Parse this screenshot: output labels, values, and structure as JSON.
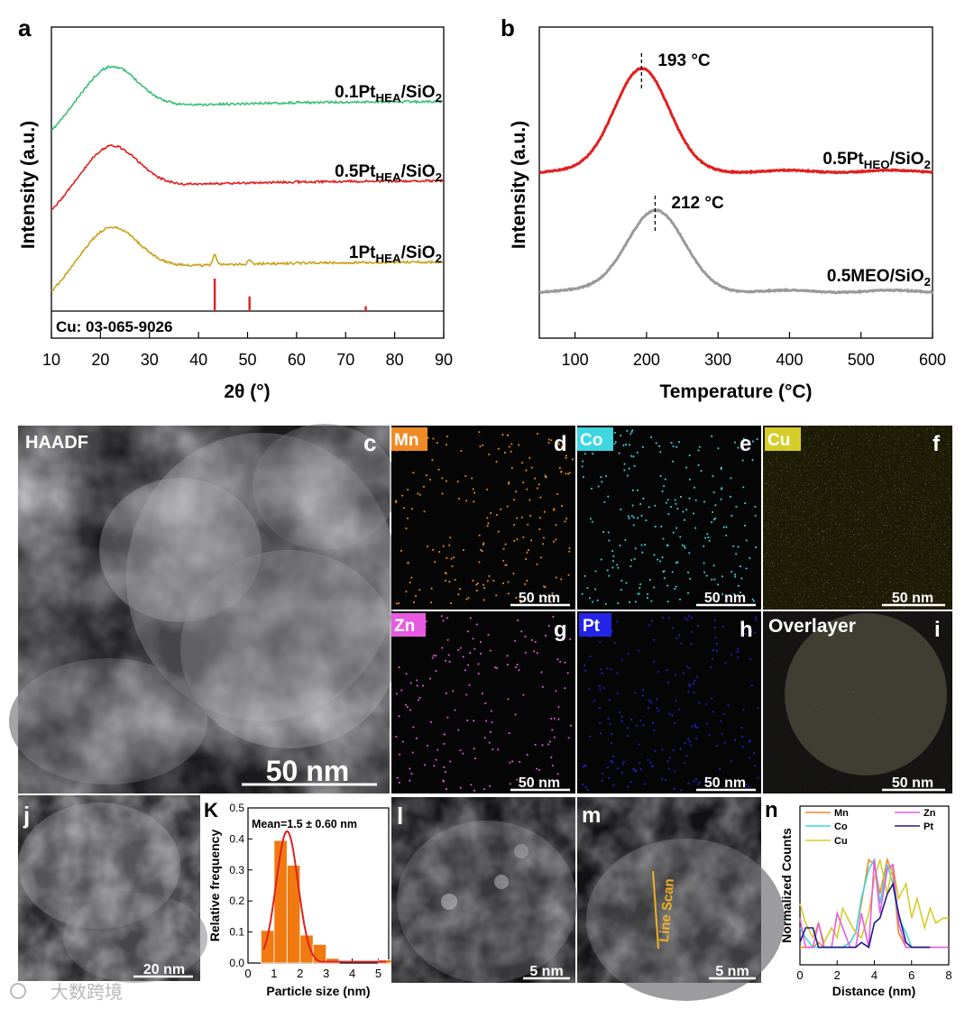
{
  "panels": {
    "a": "a",
    "b": "b",
    "c": "c",
    "d": "d",
    "e": "e",
    "f": "f",
    "g": "g",
    "h": "h",
    "i": "i",
    "j": "j",
    "K": "K",
    "l": "l",
    "m": "m",
    "n": "n"
  },
  "maps": {
    "haadf": "HAADF",
    "mn": "Mn",
    "co": "Co",
    "cu": "Cu",
    "zn": "Zn",
    "pt": "Pt",
    "overlay": "Overlayer",
    "scale_50": "50 nm",
    "scale_20": "20 nm",
    "scale_5": "5 nm",
    "line_scan": "Line Scan",
    "colors": {
      "mn": "#f08a24",
      "co": "#3ed6e0",
      "cu": "#d6cc2a",
      "zn": "#e85be0",
      "pt": "#2424e6"
    }
  },
  "watermark": "大数跨境",
  "chart_data": [
    {
      "id": "a",
      "type": "line",
      "title": "",
      "xlabel": "2θ (°)",
      "ylabel": "Intensity (a.u.)",
      "xlim": [
        10,
        90
      ],
      "xticks": [
        "10",
        "20",
        "30",
        "40",
        "50",
        "60",
        "70",
        "80",
        "90"
      ],
      "series": [
        {
          "name": "0.1PtHEA/SiO2",
          "label_main": "0.1Pt",
          "label_sub": "HEA",
          "label_rest": "/SiO",
          "label_sub2": "2",
          "color": "#3dbf7a",
          "offset": 2.0
        },
        {
          "name": "0.5PtHEA/SiO2",
          "label_main": "0.5Pt",
          "label_sub": "HEA",
          "label_rest": "/SiO",
          "label_sub2": "2",
          "color": "#e02020",
          "offset": 1.0
        },
        {
          "name": "1PtHEA/SiO2",
          "label_main": "1Pt",
          "label_sub": "HEA",
          "label_rest": "/SiO",
          "label_sub2": "2",
          "color": "#c9a21a",
          "offset": 0.0,
          "peaks": [
            43.3,
            50.4
          ]
        }
      ],
      "reference": {
        "label": "Cu: 03-065-9026",
        "color": "#e02020",
        "positions": [
          43.3,
          50.4,
          74.1
        ],
        "heights": [
          1.0,
          0.45,
          0.15
        ]
      }
    },
    {
      "id": "b",
      "type": "line",
      "title": "",
      "xlabel": "Temperature (°C)",
      "ylabel": "Intensity (a.u.)",
      "xlim": [
        50,
        600
      ],
      "xticks": [
        "100",
        "200",
        "300",
        "400",
        "500",
        "600"
      ],
      "series": [
        {
          "name": "0.5PtHEO/SiO2",
          "label_main": "0.5Pt",
          "label_sub": "HEO",
          "label_rest": "/SiO",
          "label_sub2": "2",
          "color": "#e02020",
          "peak_x": 193,
          "width": 38,
          "height": 1.15,
          "base": 1.3
        },
        {
          "name": "0.5MEO/SiO2",
          "label_main": "0.5MEO/SiO",
          "label_sub": "",
          "label_rest": "",
          "label_sub2": "2",
          "color": "#9a9a9a",
          "peak_x": 212,
          "width": 40,
          "height": 0.95,
          "base": 0.0
        }
      ],
      "annotations": [
        "193 °C",
        "212 °C"
      ]
    },
    {
      "id": "K",
      "type": "bar",
      "title": "Mean=1.5 ± 0.60 nm",
      "xlabel": "Particle size (nm)",
      "ylabel": "Relative frequency",
      "xlim": [
        0,
        5.4
      ],
      "ylim": [
        0,
        0.5
      ],
      "xticks": [
        "0",
        "1",
        "2",
        "3",
        "4",
        "5"
      ],
      "yticks": [
        "0.0",
        "0.1",
        "0.2",
        "0.3",
        "0.4",
        "0.5"
      ],
      "bins": [
        0.75,
        1.25,
        1.75,
        2.25,
        2.75,
        3.25,
        5.25
      ],
      "values": [
        0.105,
        0.395,
        0.315,
        0.09,
        0.06,
        0.015,
        0.01
      ],
      "bar_width": 0.5,
      "fit_mean": 1.5,
      "fit_sd": 0.42,
      "fit_peak": 0.425,
      "bar_color": "#f07a10",
      "fit_color": "#e02020"
    },
    {
      "id": "n",
      "type": "line",
      "title": "",
      "xlabel": "Distance (nm)",
      "ylabel": "Normalized Counts",
      "xlim": [
        0,
        8
      ],
      "xticks": [
        "0",
        "2",
        "4",
        "6",
        "8"
      ],
      "series": [
        {
          "name": "Mn",
          "color": "#f08a24",
          "x": [
            0,
            0.3,
            0.7,
            1,
            1.3,
            2,
            2.3,
            2.7,
            3,
            3.3,
            3.7,
            4,
            4.3,
            4.7,
            5,
            5.3,
            5.7,
            6,
            6.3,
            7
          ],
          "y": [
            0.05,
            0.05,
            0.05,
            0.1,
            0.05,
            0.05,
            0.05,
            0.1,
            0.2,
            0.5,
            0.95,
            0.9,
            0.6,
            0.95,
            0.8,
            0.2,
            0.05,
            0.05,
            0.05,
            0.05
          ]
        },
        {
          "name": "Co",
          "color": "#3ed6e0",
          "x": [
            0,
            0.3,
            0.7,
            1,
            1.7,
            2,
            2.3,
            2.7,
            3,
            3.3,
            3.7,
            4,
            4.3,
            4.7,
            5,
            5.3,
            5.7,
            6,
            6.3,
            7
          ],
          "y": [
            0.25,
            0.15,
            0.05,
            0.05,
            0.05,
            0.05,
            0.05,
            0.1,
            0.2,
            0.55,
            0.85,
            0.95,
            0.5,
            0.9,
            0.7,
            0.35,
            0.2,
            0.05,
            0.05,
            0.05
          ]
        },
        {
          "name": "Cu",
          "color": "#d6cc2a",
          "x": [
            0,
            0.3,
            0.7,
            1,
            1.3,
            1.7,
            2,
            2.3,
            2.7,
            3,
            3.3,
            3.7,
            4,
            4.3,
            4.7,
            5,
            5.3,
            5.7,
            6,
            6.3,
            6.7,
            7,
            7.3,
            7.7,
            8
          ],
          "y": [
            0.5,
            0.3,
            0.15,
            0.3,
            0.1,
            0.25,
            0.15,
            0.45,
            0.3,
            0.2,
            0.15,
            0.4,
            0.75,
            0.95,
            0.6,
            0.9,
            0.55,
            0.7,
            0.35,
            0.55,
            0.25,
            0.45,
            0.3,
            0.35,
            0.35
          ]
        },
        {
          "name": "Zn",
          "color": "#e85be0",
          "x": [
            0,
            0.3,
            0.7,
            1,
            1.3,
            1.7,
            2,
            2.3,
            2.7,
            3,
            3.3,
            3.7,
            4,
            4.3,
            4.7,
            5,
            5.3,
            5.7,
            6,
            6.3,
            7,
            8
          ],
          "y": [
            0.35,
            0.05,
            0.05,
            0.3,
            0.05,
            0.05,
            0.4,
            0.25,
            0.05,
            0.05,
            0.4,
            0.05,
            0.95,
            0.4,
            0.85,
            0.9,
            0.3,
            0.05,
            0.05,
            0.05,
            0.05,
            0.05
          ]
        },
        {
          "name": "Pt",
          "color": "#1a1a8c",
          "x": [
            0,
            0.3,
            0.7,
            1,
            1.3,
            1.7,
            2,
            2.3,
            2.7,
            3,
            3.3,
            3.7,
            4,
            4.3,
            4.7,
            5,
            5.3,
            5.7,
            6,
            6.3,
            7
          ],
          "y": [
            0.1,
            0.25,
            0.25,
            0.05,
            0.05,
            0.05,
            0.05,
            0.05,
            0.05,
            0.05,
            0.1,
            0.05,
            0.3,
            0.35,
            0.6,
            0.7,
            0.4,
            0.1,
            0.05,
            0.05,
            0.05
          ]
        }
      ]
    }
  ]
}
